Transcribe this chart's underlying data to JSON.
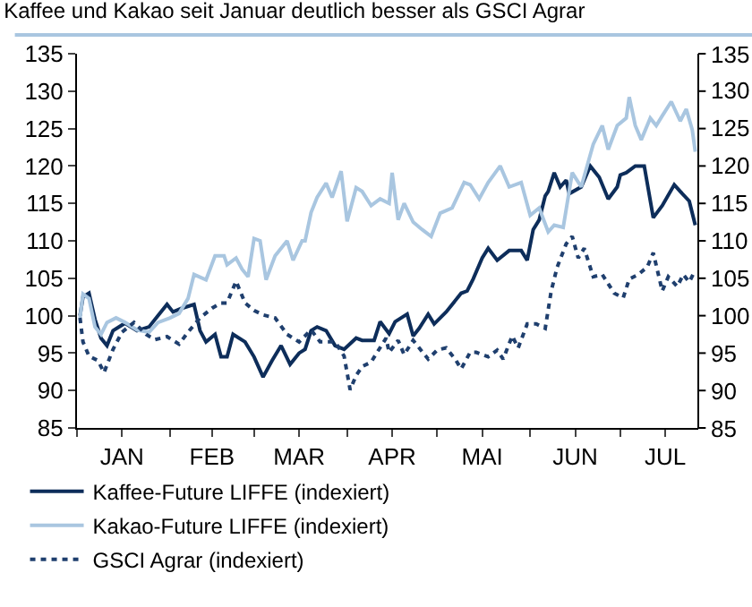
{
  "chart_data": {
    "type": "line",
    "title": "Kaffee und Kakao seit Januar deutlich besser als GSCI Agrar",
    "xlim": [
      "--01-01",
      "--07-27"
    ],
    "ylim": [
      85,
      135
    ],
    "y2lim": [
      85,
      135
    ],
    "yticks": [
      85,
      90,
      95,
      100,
      105,
      110,
      115,
      120,
      125,
      130,
      135
    ],
    "y2ticks": [
      85,
      90,
      95,
      100,
      105,
      110,
      115,
      120,
      125,
      130,
      135
    ],
    "xticks": [
      {
        "value": "--01-01",
        "label": null
      },
      {
        "value": "--01-16",
        "label": "JAN"
      },
      {
        "value": "--02-01",
        "label": null
      },
      {
        "value": "--02-15",
        "label": "FEB"
      },
      {
        "value": "--03-01",
        "label": null
      },
      {
        "value": "--03-16",
        "label": "MAR"
      },
      {
        "value": "--04-01",
        "label": null
      },
      {
        "value": "--04-16",
        "label": "APR"
      },
      {
        "value": "--05-01",
        "label": null
      },
      {
        "value": "--05-16",
        "label": "MAI"
      },
      {
        "value": "--06-01",
        "label": null
      },
      {
        "value": "--06-16",
        "label": "JUN"
      },
      {
        "value": "--07-01",
        "label": null
      },
      {
        "value": "--07-16",
        "label": "JUL"
      }
    ],
    "grid": false,
    "legend": "bottom left",
    "marker": "none",
    "series": [
      {
        "name": "Kaffee-Future LIFFE (indexiert)",
        "color": "#0d2d5a",
        "line_style": "solid",
        "x": [
          "--01-02",
          "--01-03",
          "--01-05",
          "--01-07",
          "--01-09",
          "--01-11",
          "--01-13",
          "--01-17",
          "--01-21",
          "--01-25",
          "--01-28",
          "--01-31",
          "--02-02",
          "--02-05",
          "--02-09",
          "--02-11",
          "--02-13",
          "--02-16",
          "--02-18",
          "--02-20",
          "--02-22",
          "--02-26",
          "--03-01",
          "--03-04",
          "--03-07",
          "--03-10",
          "--03-13",
          "--03-16",
          "--03-18",
          "--03-20",
          "--03-22",
          "--03-25",
          "--03-28",
          "--03-31",
          "--04-04",
          "--04-06",
          "--04-10",
          "--04-12",
          "--04-15",
          "--04-17",
          "--04-21",
          "--04-23",
          "--04-25",
          "--04-28",
          "--04-30",
          "--05-04",
          "--05-09",
          "--05-11",
          "--05-13",
          "--05-16",
          "--05-18",
          "--05-21",
          "--05-25",
          "--05-29",
          "--05-31",
          "--06-02",
          "--06-04",
          "--06-06",
          "--06-07",
          "--06-09",
          "--06-11",
          "--06-13",
          "--06-14",
          "--06-18",
          "--06-21",
          "--06-24",
          "--06-27",
          "--06-30",
          "--07-01",
          "--07-03",
          "--07-06",
          "--07-09",
          "--07-12",
          "--07-15",
          "--07-19",
          "--07-21",
          "--07-24",
          "--07-26"
        ],
        "values": [
          100,
          102.5,
          103,
          99.5,
          97,
          96,
          98,
          99,
          98,
          98.5,
          100,
          101.5,
          100.5,
          101,
          101.5,
          98,
          96.5,
          97.5,
          94.5,
          94.5,
          97.5,
          96.5,
          94.5,
          91.8,
          94,
          96,
          93.5,
          95,
          95.5,
          98,
          98.5,
          98,
          96,
          95.5,
          97,
          96.7,
          96.7,
          99.2,
          97.6,
          99.2,
          100.2,
          97.3,
          98.3,
          100.2,
          98.9,
          100.5,
          103,
          103.3,
          104.9,
          107.7,
          109,
          107.4,
          108.7,
          108.7,
          107.4,
          111.5,
          112.8,
          116,
          116.6,
          119.1,
          117.2,
          118.1,
          116.3,
          117.2,
          120,
          118.5,
          115.6,
          117.2,
          118.8,
          119.1,
          120,
          120,
          113.1,
          114.7,
          117.5,
          116.6,
          115.3,
          112.1
        ]
      },
      {
        "name": "Kakao-Future LIFFE (indexiert)",
        "color": "#a9c6e0",
        "line_style": "solid",
        "x": [
          "--01-02",
          "--01-03",
          "--01-05",
          "--01-07",
          "--01-09",
          "--01-11",
          "--01-14",
          "--01-17",
          "--01-21",
          "--01-25",
          "--01-28",
          "--02-01",
          "--02-04",
          "--02-07",
          "--02-09",
          "--02-13",
          "--02-16",
          "--02-19",
          "--02-20",
          "--02-23",
          "--02-25",
          "--02-27",
          "--03-01",
          "--03-03",
          "--03-05",
          "--03-08",
          "--03-12",
          "--03-14",
          "--03-17",
          "--03-18",
          "--03-20",
          "--03-22",
          "--03-25",
          "--03-27",
          "--03-30",
          "--04-01",
          "--04-04",
          "--04-06",
          "--04-09",
          "--04-12",
          "--04-15",
          "--04-16",
          "--04-18",
          "--04-20",
          "--04-23",
          "--04-26",
          "--04-29",
          "--05-02",
          "--05-06",
          "--05-10",
          "--05-12",
          "--05-15",
          "--05-18",
          "--05-22",
          "--05-25",
          "--05-29",
          "--06-01",
          "--06-04",
          "--06-07",
          "--06-09",
          "--06-12",
          "--06-15",
          "--06-18",
          "--06-22",
          "--06-25",
          "--06-27",
          "--06-30",
          "--07-03",
          "--07-04",
          "--07-06",
          "--07-08",
          "--07-11",
          "--07-13",
          "--07-15",
          "--07-18",
          "--07-21",
          "--07-23",
          "--07-25",
          "--07-26"
        ],
        "values": [
          99.7,
          102.9,
          102.3,
          98.5,
          97.5,
          99.1,
          99.7,
          99.1,
          98.1,
          97.8,
          99.1,
          99.7,
          100.3,
          102.3,
          105.5,
          104.8,
          108,
          108,
          106.8,
          107.7,
          106.2,
          105.2,
          110.3,
          110,
          104.8,
          108,
          110,
          107.4,
          110,
          110,
          113.8,
          115.8,
          117.7,
          115.8,
          119.3,
          112.6,
          117.1,
          116.6,
          114.7,
          115.6,
          115,
          119.1,
          112.8,
          115,
          112.5,
          111.5,
          110.6,
          113.7,
          114.4,
          117.8,
          117.5,
          115.6,
          117.8,
          120,
          117.2,
          117.8,
          113.4,
          114.4,
          111.2,
          112.1,
          111.8,
          119.1,
          117.2,
          122.9,
          125.4,
          122.2,
          125.4,
          126.4,
          129.2,
          125.4,
          123.5,
          126.4,
          125.4,
          126.7,
          128.6,
          126,
          127.6,
          124.8,
          121.9
        ]
      },
      {
        "name": "GSCI Agrar (indexiert)",
        "color": "#1f3f6e",
        "line_style": "dotted",
        "x": [
          "--01-02",
          "--01-03",
          "--01-05",
          "--01-08",
          "--01-10",
          "--01-13",
          "--01-16",
          "--01-20",
          "--01-24",
          "--01-27",
          "--01-31",
          "--02-04",
          "--02-07",
          "--02-11",
          "--02-15",
          "--02-18",
          "--02-20",
          "--02-23",
          "--02-26",
          "--03-01",
          "--03-04",
          "--03-08",
          "--03-12",
          "--03-16",
          "--03-20",
          "--03-23",
          "--03-28",
          "--03-31",
          "--04-02",
          "--04-04",
          "--04-06",
          "--04-09",
          "--04-11",
          "--04-14",
          "--04-15",
          "--04-18",
          "--04-20",
          "--04-23",
          "--04-28",
          "--05-01",
          "--05-04",
          "--05-07",
          "--05-09",
          "--05-12",
          "--05-14",
          "--05-18",
          "--05-21",
          "--05-23",
          "--05-26",
          "--05-28",
          "--05-31",
          "--06-03",
          "--06-06",
          "--06-08",
          "--06-10",
          "--06-13",
          "--06-15",
          "--06-17",
          "--06-19",
          "--06-22",
          "--06-25",
          "--06-29",
          "--07-02",
          "--07-04",
          "--07-07",
          "--07-10",
          "--07-12",
          "--07-15",
          "--07-17",
          "--07-20",
          "--07-22",
          "--07-24",
          "--07-26"
        ],
        "values": [
          99.7,
          96.5,
          94.6,
          94,
          92.4,
          95.5,
          97.8,
          99.1,
          97.5,
          96.8,
          97.2,
          96.2,
          97.8,
          99.7,
          101,
          101.7,
          101.7,
          104.6,
          101.7,
          100.7,
          100.1,
          99.7,
          97.5,
          96.5,
          98.1,
          96.5,
          96.5,
          94.6,
          90.1,
          92,
          93.2,
          93.8,
          95.1,
          97,
          95.1,
          96.7,
          94.8,
          96.7,
          94.2,
          95.4,
          95.7,
          94.2,
          92.9,
          95.1,
          95.1,
          94.5,
          95.4,
          94.2,
          97.3,
          95.7,
          98.9,
          98.9,
          98.3,
          103.3,
          106.5,
          109.6,
          110.6,
          107.7,
          109,
          105.2,
          105.5,
          103,
          102.4,
          104.9,
          105.5,
          106.5,
          108.4,
          103.3,
          105.2,
          103.9,
          105.5,
          104.5,
          106.1
        ]
      }
    ]
  }
}
